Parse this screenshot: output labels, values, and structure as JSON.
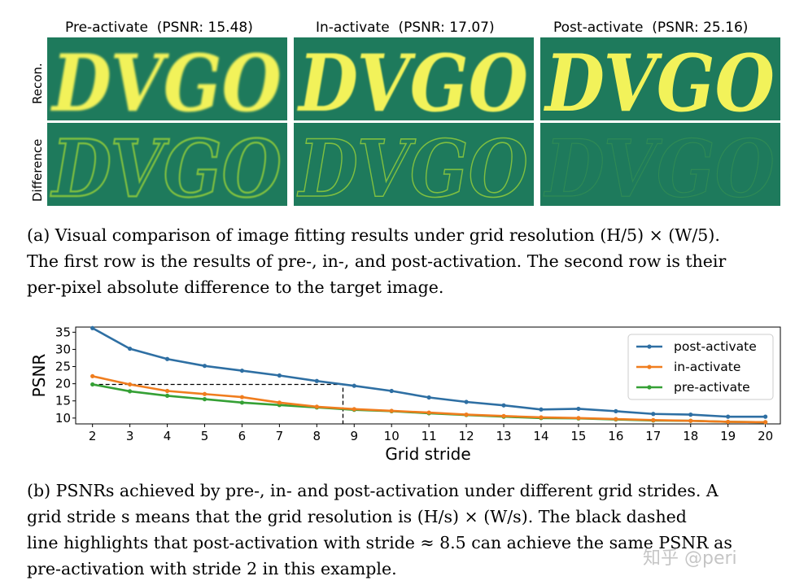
{
  "figure_a": {
    "panels": [
      {
        "title": "Pre-activate",
        "psnr_label": "(PSNR: 15.48)"
      },
      {
        "title": "In-activate",
        "psnr_label": "(PSNR: 17.07)"
      },
      {
        "title": "Post-activate",
        "psnr_label": "(PSNR: 25.16)"
      }
    ],
    "row_labels": [
      "Recon.",
      "Difference"
    ],
    "tile_word": "DVGO",
    "colors": {
      "background": "#1e7a5c",
      "glyph_recon": "#f2f25a",
      "glyph_diff_strong": "#7fbf40",
      "glyph_diff_faint": "#2f8a55"
    },
    "caption_lines": [
      "(a) Visual comparison of image fitting results under grid resolution (H/5) × (W/5).",
      "The first row is the results of pre-, in-, and post-activation.  The second row is their",
      "per-pixel absolute difference to the target image."
    ]
  },
  "chart_data": {
    "type": "line",
    "xlabel": "Grid stride",
    "ylabel": "PSNR",
    "x": [
      2,
      3,
      4,
      5,
      6,
      7,
      8,
      9,
      10,
      11,
      12,
      13,
      14,
      15,
      16,
      17,
      18,
      19,
      20
    ],
    "yticks": [
      10,
      15,
      20,
      25,
      30,
      35
    ],
    "ylim": [
      8.3,
      36.5
    ],
    "xlim": [
      1.55,
      20.4
    ],
    "legend_position": "top-right",
    "grid": false,
    "series": [
      {
        "name": "post-activate",
        "color": "#2e6fa3",
        "values": [
          36.2,
          30.2,
          27.2,
          25.2,
          23.8,
          22.4,
          20.8,
          19.4,
          17.9,
          16.0,
          14.7,
          13.7,
          12.5,
          12.7,
          12.0,
          11.2,
          11.0,
          10.4,
          10.4
        ]
      },
      {
        "name": "in-activate",
        "color": "#f07d1e",
        "values": [
          22.2,
          19.8,
          17.9,
          17.0,
          16.1,
          14.5,
          13.3,
          12.6,
          12.1,
          11.6,
          11.0,
          10.6,
          10.2,
          10.0,
          9.7,
          9.4,
          9.2,
          8.9,
          8.8
        ]
      },
      {
        "name": "pre-activate",
        "color": "#35a035",
        "values": [
          19.8,
          17.8,
          16.5,
          15.5,
          14.5,
          13.8,
          13.1,
          12.4,
          12.0,
          11.4,
          10.9,
          10.4,
          10.0,
          9.9,
          9.6,
          9.3,
          9.2,
          8.9,
          8.8
        ]
      }
    ],
    "annotation": {
      "type": "dashed-guide",
      "y": 19.8,
      "x_from": 2,
      "x_to": 8.7,
      "color": "#000000"
    }
  },
  "figure_b": {
    "caption_lines": [
      "(b) PSNRs achieved by pre-, in- and post-activation under different grid strides.  A",
      "grid stride s means that the grid resolution is (H/s) × (W/s).  The black dashed",
      "line highlights that post-activation with stride ≈ 8.5 can achieve the same PSNR as",
      "pre-activation with stride 2 in this example."
    ]
  },
  "watermark": "知乎 @peri"
}
